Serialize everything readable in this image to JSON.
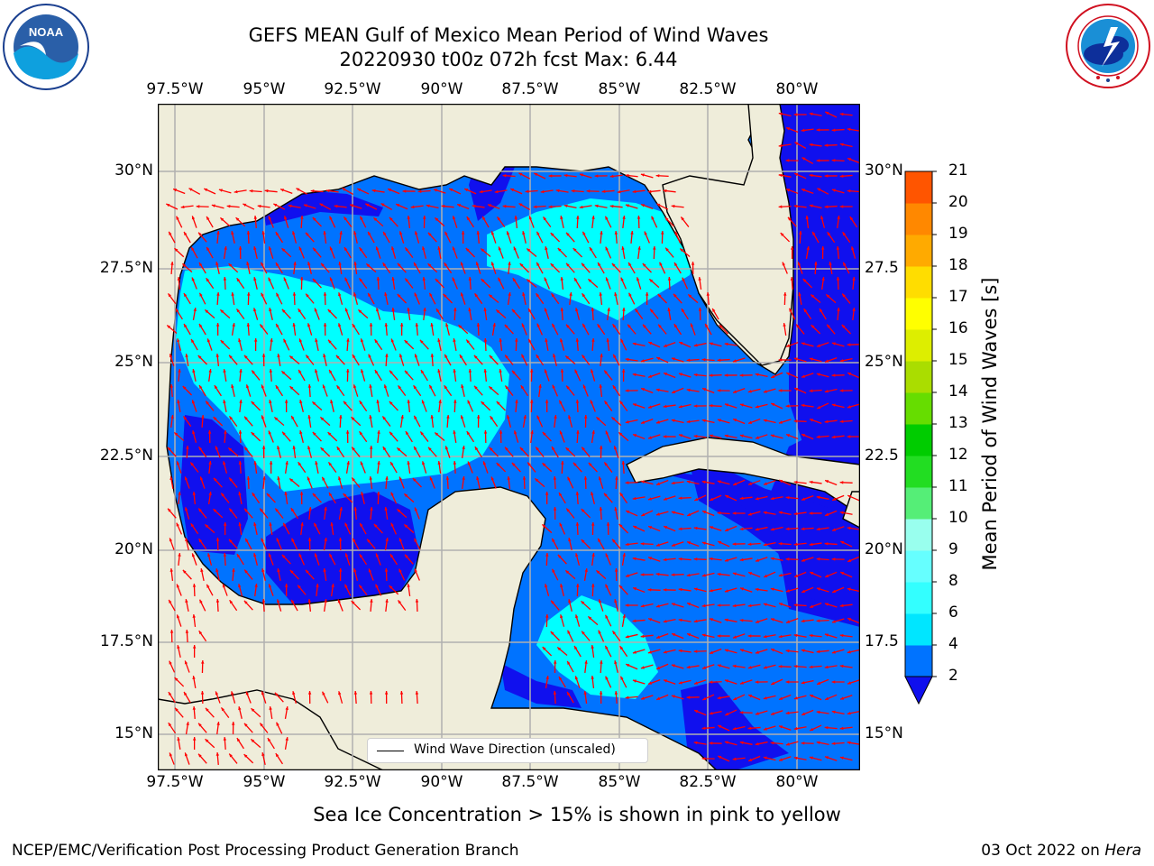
{
  "title_line1": "GEFS MEAN Gulf of Mexico Mean Period of Wind Waves",
  "title_line2": "20220930 t00z 072h fcst   Max: 6.44",
  "lon_labels": [
    "97.5°W",
    "95°W",
    "92.5°W",
    "90°W",
    "87.5°W",
    "85°W",
    "82.5°W",
    "80°W"
  ],
  "lat_labels_left": [
    "30°N",
    "27.5°N",
    "25°N",
    "22.5°N",
    "20°N",
    "17.5°N",
    "15°N"
  ],
  "lat_labels_right": [
    "30°N",
    "27.5",
    "25°N",
    "22.5",
    "20°N",
    "17.5",
    "15°N"
  ],
  "colorbar": {
    "label": "Mean Period of Wind Waves [s]",
    "ticks": [
      "2",
      "4",
      "6",
      "8",
      "9",
      "10",
      "11",
      "12",
      "13",
      "14",
      "15",
      "16",
      "17",
      "18",
      "19",
      "20",
      "21"
    ],
    "colors": [
      "#0073ff",
      "#00e6ff",
      "#33ffff",
      "#66ffff",
      "#99ffee",
      "#55ee77",
      "#22dd22",
      "#00cc00",
      "#66dd00",
      "#aadd00",
      "#ddee00",
      "#ffff00",
      "#ffdd00",
      "#ffaa00",
      "#ff8800",
      "#ff5500",
      "#ff2200",
      "#ff0000"
    ],
    "extend_color": "#1010ee"
  },
  "map_colors": {
    "land": "#efedda",
    "band_2_4": "#0073ff",
    "band_4_6": "#00ffff",
    "below_2": "#1010ee",
    "arrow": "#ff0000",
    "grid": "#b0b0b0"
  },
  "legend_text": "Wind Wave Direction (unscaled)",
  "caption": "Sea Ice Concentration > 15% is shown in pink to yellow",
  "footer_left": "NCEP/EMC/Verification Post Processing Product Generation Branch",
  "footer_right_date": "03 Oct 2022 on ",
  "footer_right_host": "Hera",
  "logo_left_text": "NOAA",
  "logo_right_text": "NATIONAL WEATHER SERVICE"
}
